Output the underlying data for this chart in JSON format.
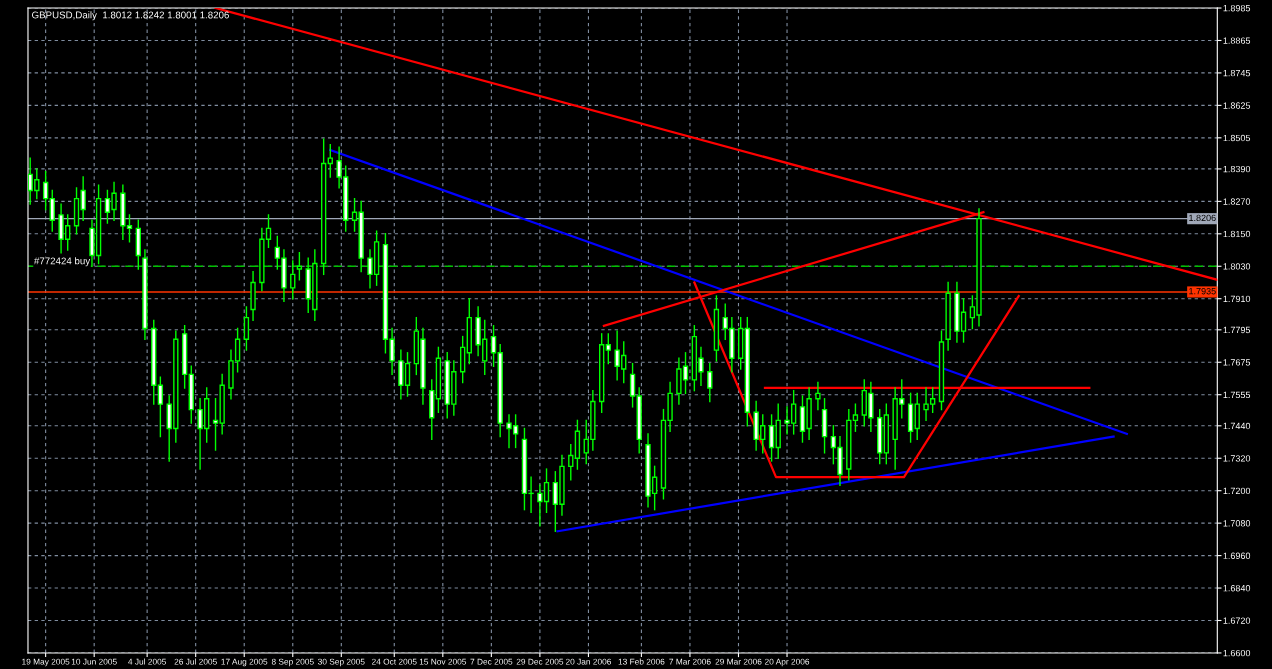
{
  "chart_data": {
    "type": "candlestick",
    "title": "GBPUSD,Daily  1.8012 1.8242 1.8001 1.8206",
    "x": [
      "2005-05-12",
      "2005-05-15",
      "2005-05-19",
      "2005-05-22",
      "2005-05-26",
      "2005-05-29",
      "2005-06-02",
      "2005-06-05",
      "2005-06-09",
      "2005-06-12",
      "2005-06-16",
      "2005-06-19",
      "2005-06-23",
      "2005-06-26",
      "2005-06-30",
      "2005-07-03",
      "2005-07-07",
      "2005-07-10",
      "2005-07-14",
      "2005-07-17",
      "2005-07-21",
      "2005-07-24",
      "2005-07-28",
      "2005-07-31",
      "2005-08-04",
      "2005-08-07",
      "2005-08-11",
      "2005-08-14",
      "2005-08-18",
      "2005-08-21",
      "2005-08-25",
      "2005-08-28",
      "2005-09-01",
      "2005-09-04",
      "2005-09-08",
      "2005-09-11",
      "2005-09-15",
      "2005-09-18",
      "2005-09-22",
      "2005-09-25",
      "2005-09-29",
      "2005-10-02",
      "2005-10-06",
      "2005-10-09",
      "2005-10-13",
      "2005-10-16",
      "2005-10-20",
      "2005-10-23",
      "2005-10-27",
      "2005-10-30",
      "2005-11-03",
      "2005-11-06",
      "2005-11-10",
      "2005-11-13",
      "2005-11-17",
      "2005-11-20",
      "2005-11-24",
      "2005-11-27",
      "2005-12-01",
      "2005-12-04",
      "2005-12-08",
      "2005-12-11",
      "2005-12-15",
      "2005-12-18",
      "2005-12-22",
      "2005-12-25",
      "2005-12-29",
      "2006-01-01",
      "2006-01-05",
      "2006-01-08",
      "2006-01-12",
      "2006-01-15",
      "2006-01-19",
      "2006-01-22",
      "2006-01-26",
      "2006-01-29",
      "2006-02-02",
      "2006-02-05",
      "2006-02-09",
      "2006-02-12",
      "2006-02-16",
      "2006-02-19",
      "2006-02-23",
      "2006-02-26",
      "2006-03-02",
      "2006-03-05",
      "2006-03-09",
      "2006-03-12",
      "2006-03-16",
      "2006-03-19",
      "2006-03-23",
      "2006-03-26",
      "2006-03-30",
      "2006-04-02",
      "2006-04-06",
      "2006-04-09",
      "2006-04-13",
      "2006-04-16",
      "2006-04-20",
      "2006-04-23",
      "2006-04-27",
      "2006-04-30",
      "2006-05-04",
      "2006-05-07",
      "2006-05-11",
      "2006-05-14",
      "2006-05-18",
      "2006-05-21",
      "2006-05-25",
      "2006-05-28",
      "2006-06-01",
      "2006-06-04",
      "2006-06-08",
      "2006-06-11",
      "2006-06-15",
      "2006-06-18",
      "2006-06-22",
      "2006-06-25",
      "2006-06-29",
      "2006-07-02",
      "2006-07-06",
      "2006-07-09",
      "2006-07-13",
      "2006-07-16"
    ],
    "ohlc": [
      [
        1.837,
        1.843,
        1.826,
        1.831
      ],
      [
        1.831,
        1.839,
        1.828,
        1.835
      ],
      [
        1.834,
        1.838,
        1.824,
        1.828
      ],
      [
        1.828,
        1.831,
        1.816,
        1.82
      ],
      [
        1.822,
        1.826,
        1.808,
        1.813
      ],
      [
        1.813,
        1.822,
        1.809,
        1.818
      ],
      [
        1.818,
        1.832,
        1.815,
        1.828
      ],
      [
        1.831,
        1.836,
        1.82,
        1.824
      ],
      [
        1.817,
        1.82,
        1.803,
        1.807
      ],
      [
        1.807,
        1.833,
        1.804,
        1.828
      ],
      [
        1.828,
        1.831,
        1.819,
        1.823
      ],
      [
        1.824,
        1.834,
        1.82,
        1.83
      ],
      [
        1.83,
        1.833,
        1.813,
        1.818
      ],
      [
        1.818,
        1.822,
        1.812,
        1.817
      ],
      [
        1.817,
        1.82,
        1.802,
        1.807
      ],
      [
        1.806,
        1.809,
        1.776,
        1.78
      ],
      [
        1.78,
        1.783,
        1.752,
        1.759
      ],
      [
        1.759,
        1.762,
        1.74,
        1.752
      ],
      [
        1.752,
        1.755,
        1.731,
        1.743
      ],
      [
        1.743,
        1.779,
        1.738,
        1.776
      ],
      [
        1.778,
        1.781,
        1.758,
        1.763
      ],
      [
        1.763,
        1.766,
        1.745,
        1.75
      ],
      [
        1.75,
        1.754,
        1.728,
        1.743
      ],
      [
        1.743,
        1.758,
        1.738,
        1.754
      ],
      [
        1.746,
        1.754,
        1.735,
        1.745
      ],
      [
        1.745,
        1.763,
        1.741,
        1.759
      ],
      [
        1.758,
        1.772,
        1.754,
        1.768
      ],
      [
        1.768,
        1.78,
        1.764,
        1.776
      ],
      [
        1.776,
        1.788,
        1.772,
        1.784
      ],
      [
        1.787,
        1.801,
        1.783,
        1.797
      ],
      [
        1.797,
        1.817,
        1.794,
        1.813
      ],
      [
        1.813,
        1.822,
        1.81,
        1.817
      ],
      [
        1.81,
        1.814,
        1.802,
        1.806
      ],
      [
        1.806,
        1.809,
        1.79,
        1.795
      ],
      [
        1.795,
        1.805,
        1.791,
        1.8
      ],
      [
        1.802,
        1.808,
        1.798,
        1.803
      ],
      [
        1.802,
        1.806,
        1.786,
        1.791
      ],
      [
        1.787,
        1.809,
        1.783,
        1.804
      ],
      [
        1.804,
        1.85,
        1.8,
        1.841
      ],
      [
        1.841,
        1.848,
        1.836,
        1.843
      ],
      [
        1.842,
        1.847,
        1.832,
        1.836
      ],
      [
        1.836,
        1.84,
        1.816,
        1.82
      ],
      [
        1.82,
        1.828,
        1.816,
        1.823
      ],
      [
        1.823,
        1.827,
        1.801,
        1.806
      ],
      [
        1.806,
        1.809,
        1.795,
        1.8
      ],
      [
        1.8,
        1.816,
        1.796,
        1.812
      ],
      [
        1.811,
        1.815,
        1.771,
        1.776
      ],
      [
        1.776,
        1.78,
        1.763,
        1.768
      ],
      [
        1.768,
        1.772,
        1.754,
        1.759
      ],
      [
        1.759,
        1.771,
        1.755,
        1.767
      ],
      [
        1.767,
        1.784,
        1.763,
        1.779
      ],
      [
        1.776,
        1.78,
        1.752,
        1.758
      ],
      [
        1.757,
        1.761,
        1.739,
        1.747
      ],
      [
        1.754,
        1.773,
        1.749,
        1.769
      ],
      [
        1.768,
        1.771,
        1.747,
        1.752
      ],
      [
        1.752,
        1.768,
        1.748,
        1.764
      ],
      [
        1.764,
        1.777,
        1.76,
        1.773
      ],
      [
        1.771,
        1.791,
        1.767,
        1.784
      ],
      [
        1.784,
        1.788,
        1.77,
        1.774
      ],
      [
        1.768,
        1.783,
        1.763,
        1.776
      ],
      [
        1.777,
        1.781,
        1.766,
        1.771
      ],
      [
        1.771,
        1.774,
        1.74,
        1.745
      ],
      [
        1.745,
        1.748,
        1.736,
        1.743
      ],
      [
        1.744,
        1.748,
        1.736,
        1.741
      ],
      [
        1.739,
        1.743,
        1.713,
        1.719
      ],
      [
        1.719,
        1.725,
        1.712,
        1.719
      ],
      [
        1.719,
        1.722,
        1.707,
        1.716
      ],
      [
        1.716,
        1.728,
        1.712,
        1.723
      ],
      [
        1.723,
        1.727,
        1.705,
        1.715
      ],
      [
        1.715,
        1.733,
        1.711,
        1.729
      ],
      [
        1.729,
        1.737,
        1.724,
        1.733
      ],
      [
        1.732,
        1.746,
        1.728,
        1.742
      ],
      [
        1.734,
        1.746,
        1.73,
        1.739
      ],
      [
        1.739,
        1.757,
        1.735,
        1.753
      ],
      [
        1.753,
        1.778,
        1.749,
        1.774
      ],
      [
        1.774,
        1.778,
        1.767,
        1.772
      ],
      [
        1.772,
        1.779,
        1.761,
        1.766
      ],
      [
        1.765,
        1.775,
        1.76,
        1.77
      ],
      [
        1.763,
        1.767,
        1.751,
        1.755
      ],
      [
        1.755,
        1.758,
        1.734,
        1.739
      ],
      [
        1.737,
        1.741,
        1.714,
        1.718
      ],
      [
        1.719,
        1.729,
        1.713,
        1.725
      ],
      [
        1.721,
        1.75,
        1.717,
        1.746
      ],
      [
        1.746,
        1.76,
        1.742,
        1.756
      ],
      [
        1.756,
        1.769,
        1.752,
        1.765
      ],
      [
        1.766,
        1.771,
        1.756,
        1.761
      ],
      [
        1.761,
        1.781,
        1.757,
        1.777
      ],
      [
        1.769,
        1.773,
        1.759,
        1.764
      ],
      [
        1.764,
        1.767,
        1.753,
        1.758
      ],
      [
        1.772,
        1.792,
        1.768,
        1.787
      ],
      [
        1.784,
        1.789,
        1.776,
        1.78
      ],
      [
        1.78,
        1.784,
        1.764,
        1.769
      ],
      [
        1.769,
        1.784,
        1.765,
        1.78
      ],
      [
        1.78,
        1.784,
        1.744,
        1.749
      ],
      [
        1.749,
        1.753,
        1.735,
        1.739
      ],
      [
        1.739,
        1.748,
        1.734,
        1.744
      ],
      [
        1.744,
        1.748,
        1.731,
        1.736
      ],
      [
        1.736,
        1.752,
        1.732,
        1.746
      ],
      [
        1.746,
        1.751,
        1.741,
        1.745
      ],
      [
        1.745,
        1.757,
        1.741,
        1.752
      ],
      [
        1.751,
        1.755,
        1.738,
        1.742
      ],
      [
        1.743,
        1.758,
        1.739,
        1.754
      ],
      [
        1.754,
        1.76,
        1.75,
        1.756
      ],
      [
        1.75,
        1.754,
        1.734,
        1.74
      ],
      [
        1.74,
        1.744,
        1.73,
        1.736
      ],
      [
        1.736,
        1.74,
        1.722,
        1.726
      ],
      [
        1.728,
        1.75,
        1.724,
        1.746
      ],
      [
        1.746,
        1.752,
        1.742,
        1.748
      ],
      [
        1.748,
        1.761,
        1.744,
        1.757
      ],
      [
        1.756,
        1.76,
        1.742,
        1.747
      ],
      [
        1.747,
        1.75,
        1.73,
        1.734
      ],
      [
        1.734,
        1.752,
        1.73,
        1.748
      ],
      [
        1.739,
        1.758,
        1.728,
        1.754
      ],
      [
        1.754,
        1.761,
        1.747,
        1.752
      ],
      [
        1.752,
        1.756,
        1.738,
        1.742
      ],
      [
        1.743,
        1.756,
        1.739,
        1.752
      ],
      [
        1.75,
        1.758,
        1.746,
        1.752
      ],
      [
        1.752,
        1.758,
        1.749,
        1.754
      ],
      [
        1.753,
        1.779,
        1.75,
        1.775
      ],
      [
        1.776,
        1.797,
        1.772,
        1.793
      ],
      [
        1.793,
        1.797,
        1.775,
        1.779
      ],
      [
        1.779,
        1.791,
        1.775,
        1.786
      ],
      [
        1.784,
        1.792,
        1.78,
        1.788
      ],
      [
        1.785,
        1.8242,
        1.781,
        1.8206
      ]
    ],
    "color": "#00ff00",
    "series": [
      {
        "type": "line",
        "color": "#ff0000",
        "x": [
          "2005-08-04",
          "2006-11-01"
        ],
        "values": [
          1.8985,
          1.798
        ]
      },
      {
        "type": "line",
        "color": "#0000ff",
        "x": [
          "2005-09-25",
          "2006-09-21"
        ],
        "values": [
          1.846,
          1.741
        ]
      },
      {
        "type": "line",
        "color": "#0000ff",
        "x": [
          "2006-01-06",
          "2006-09-15"
        ],
        "values": [
          1.705,
          1.74
        ]
      },
      {
        "type": "line",
        "color": "#ff0000",
        "x": [
          "2006-01-27",
          "2006-07-18"
        ],
        "values": [
          1.781,
          1.823
        ]
      },
      {
        "type": "line",
        "color": "#ff0000",
        "x": [
          "2006-03-09",
          "2006-04-15",
          "2006-06-12",
          "2006-08-03"
        ],
        "values": [
          1.797,
          1.725,
          1.725,
          1.792
        ]
      },
      {
        "type": "line",
        "color": "#ff0000",
        "x": [
          "2006-04-10",
          "2006-09-04"
        ],
        "values": [
          1.758,
          1.758
        ]
      }
    ],
    "ref_lines": [
      {
        "axis": "y",
        "value": 1.8206,
        "label": "1.8206",
        "color": "#a0a8b8",
        "line_style": "solid"
      },
      {
        "axis": "y",
        "value": 1.803,
        "label": "#772424 buy",
        "color": "#00c000",
        "line_style": "dashed"
      },
      {
        "axis": "y",
        "value": 1.7935,
        "label": "1.7935",
        "color": "#ff3300",
        "line_style": "solid"
      }
    ],
    "xlim": [
      "2005-05-11",
      "2006-11-01"
    ],
    "xticks": [
      {
        "value": "2005-05-19",
        "label": "19 May 2005"
      },
      {
        "value": "2005-06-10",
        "label": "10 Jun 2005"
      },
      {
        "value": "2005-07-04",
        "label": "4 Jul 2005"
      },
      {
        "value": "2005-07-26",
        "label": "26 Jul 2005"
      },
      {
        "value": "2005-08-17",
        "label": "17 Aug 2005"
      },
      {
        "value": "2005-09-08",
        "label": "8 Sep 2005"
      },
      {
        "value": "2005-09-30",
        "label": "30 Sep 2005"
      },
      {
        "value": "2005-10-24",
        "label": "24 Oct 2005"
      },
      {
        "value": "2005-11-15",
        "label": "15 Nov 2005"
      },
      {
        "value": "2005-12-07",
        "label": "7 Dec 2005"
      },
      {
        "value": "2005-12-29",
        "label": "29 Dec 2005"
      },
      {
        "value": "2006-01-20",
        "label": "20 Jan 2006"
      },
      {
        "value": "2006-02-13",
        "label": "13 Feb 2006"
      },
      {
        "value": "2006-03-07",
        "label": "7 Mar 2006"
      },
      {
        "value": "2006-03-29",
        "label": "29 Mar 2006"
      },
      {
        "value": "2006-04-20",
        "label": "20 Apr 2006"
      }
    ],
    "ylim": [
      1.66,
      1.8985
    ],
    "yticks": [
      {
        "value": 1.66,
        "label": "1.6600"
      },
      {
        "value": 1.672,
        "label": "1.6720"
      },
      {
        "value": 1.684,
        "label": "1.6840"
      },
      {
        "value": 1.696,
        "label": "1.6960"
      },
      {
        "value": 1.708,
        "label": "1.7080"
      },
      {
        "value": 1.72,
        "label": "1.7200"
      },
      {
        "value": 1.732,
        "label": "1.7320"
      },
      {
        "value": 1.744,
        "label": "1.7440"
      },
      {
        "value": 1.7555,
        "label": "1.7555"
      },
      {
        "value": 1.7675,
        "label": "1.7675"
      },
      {
        "value": 1.7795,
        "label": "1.7795"
      },
      {
        "value": 1.791,
        "label": "1.7910"
      },
      {
        "value": 1.803,
        "label": "1.8030"
      },
      {
        "value": 1.815,
        "label": "1.8150"
      },
      {
        "value": 1.827,
        "label": "1.8270"
      },
      {
        "value": 1.839,
        "label": "1.8390"
      },
      {
        "value": 1.8505,
        "label": "1.8505"
      },
      {
        "value": 1.8625,
        "label": "1.8625"
      },
      {
        "value": 1.8745,
        "label": "1.8745"
      },
      {
        "value": 1.8865,
        "label": "1.8865"
      },
      {
        "value": 1.8985,
        "label": "1.8985"
      }
    ],
    "grid": true
  }
}
